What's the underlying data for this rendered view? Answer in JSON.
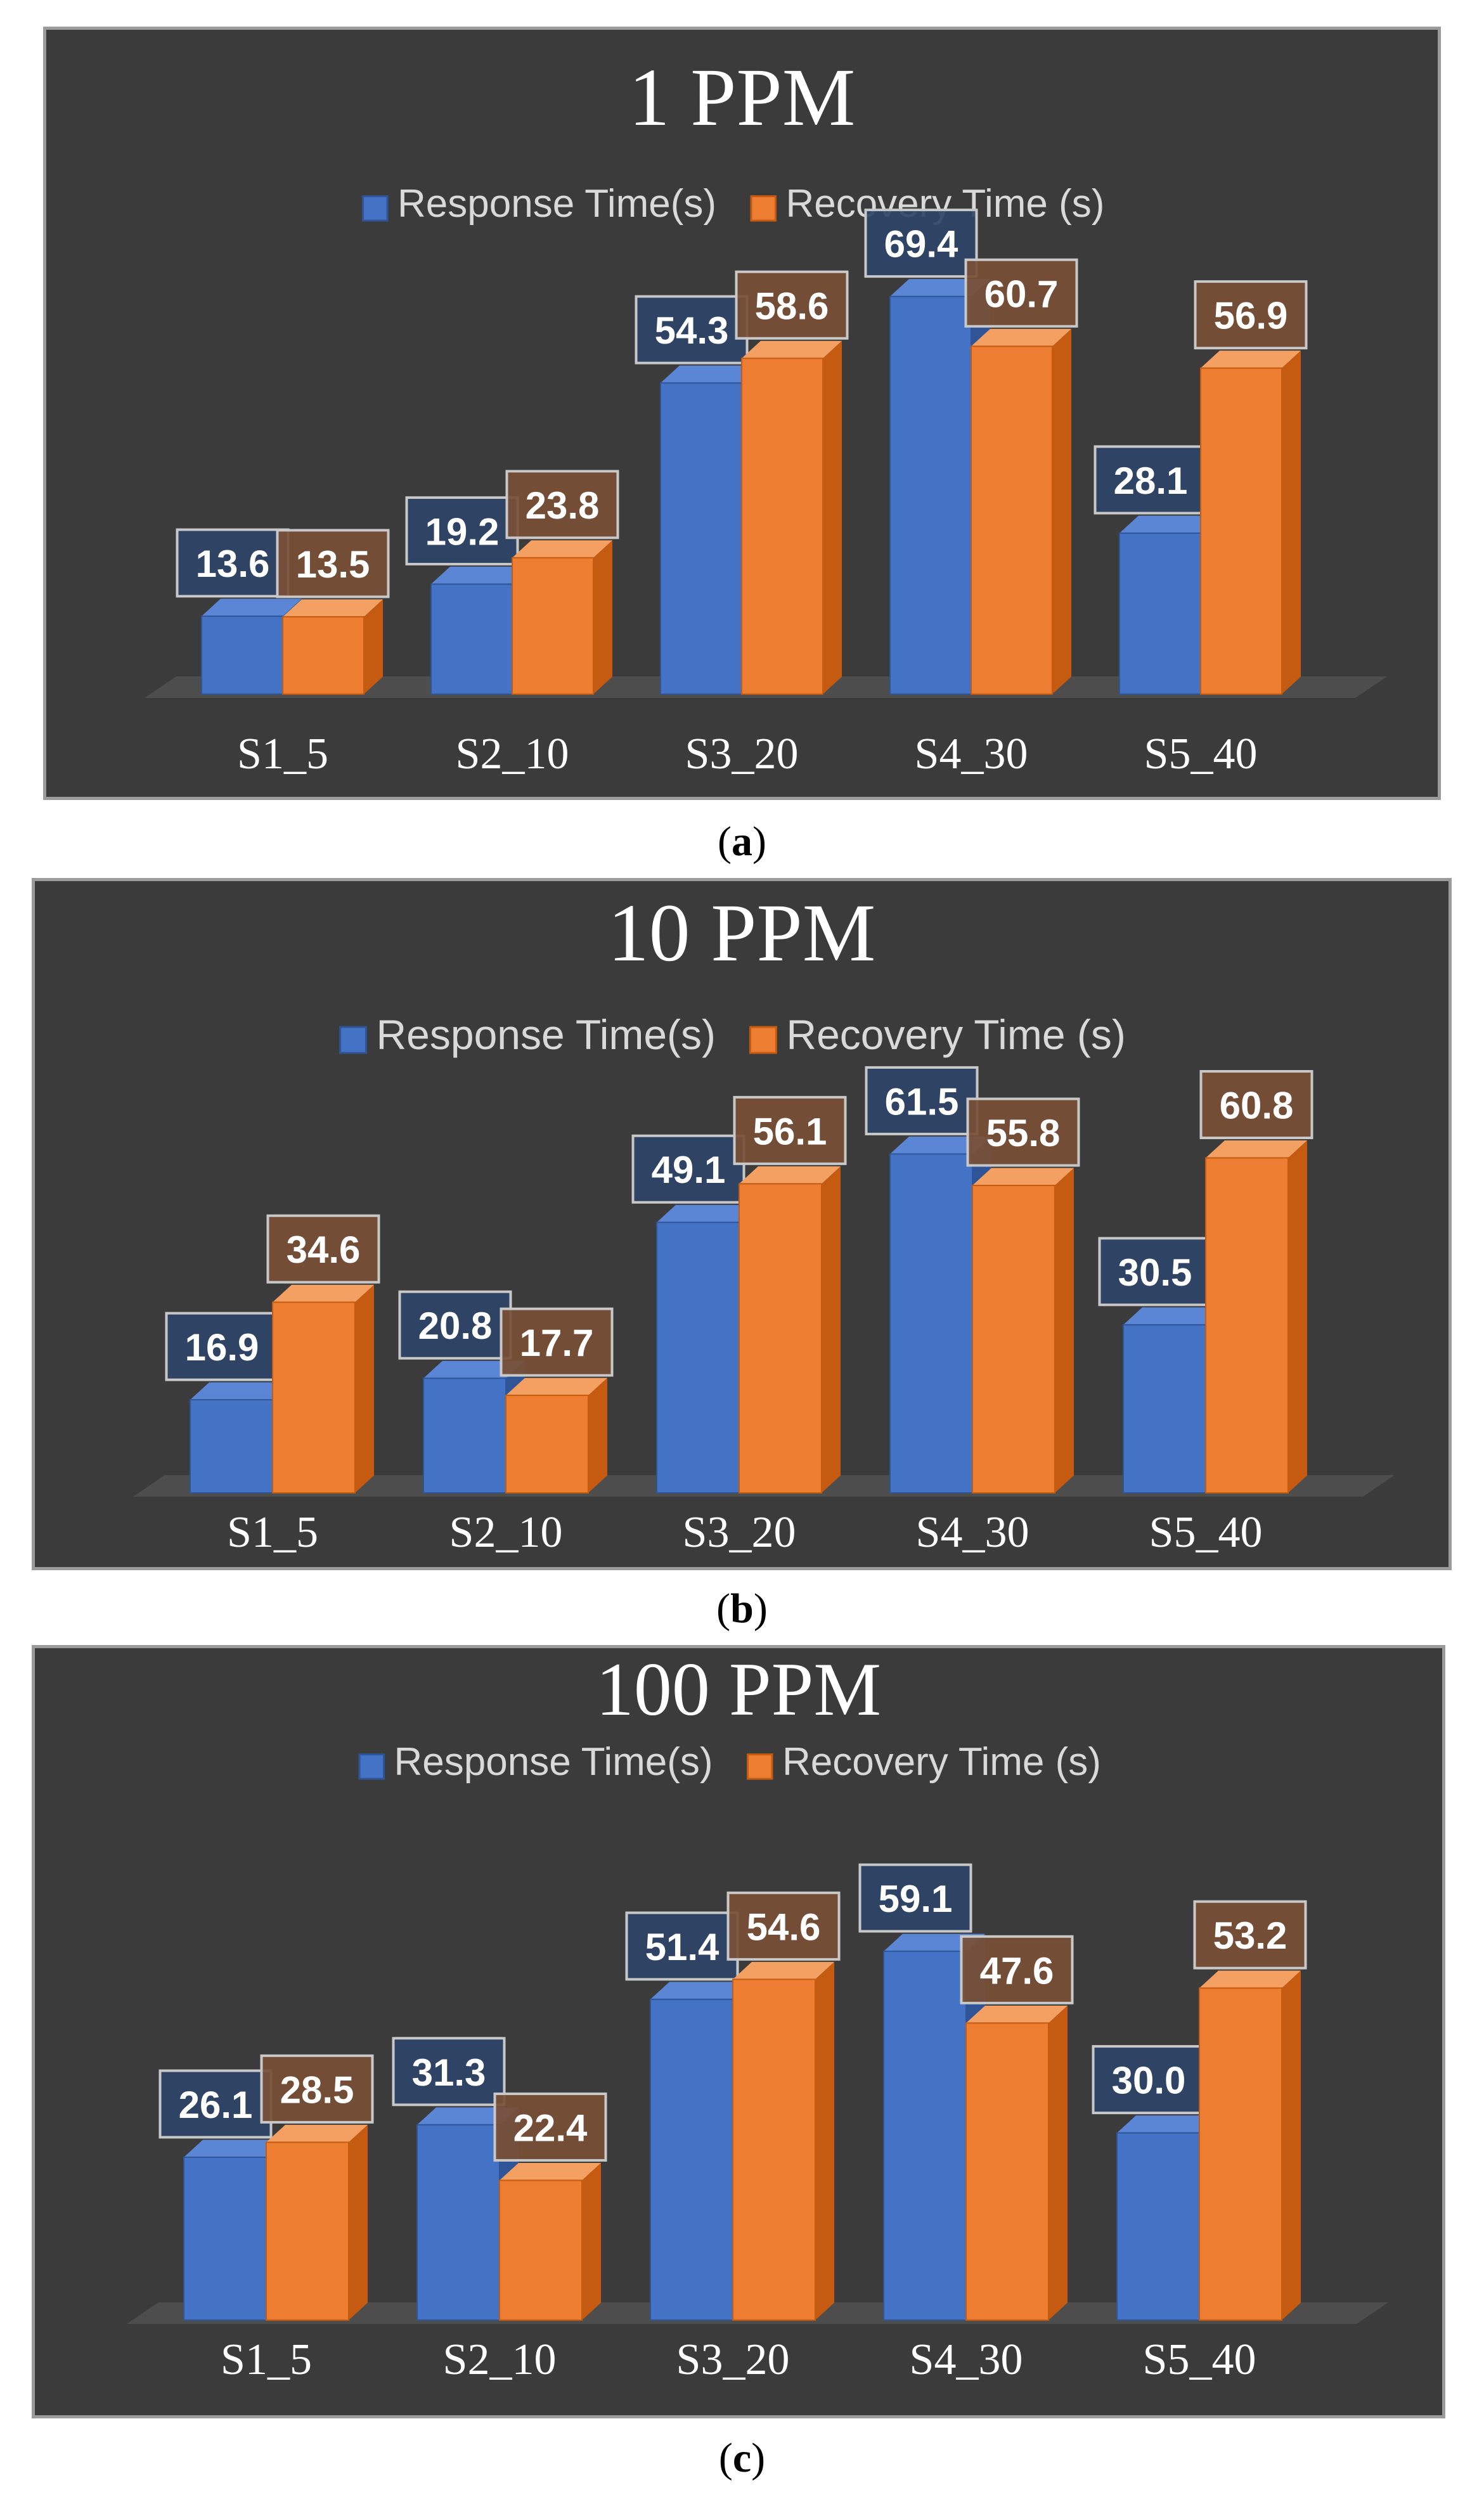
{
  "colors": {
    "response_front": "#4472c4",
    "response_side": "#2f5597",
    "response_top": "#5b86d6",
    "recovery_front": "#ed7d31",
    "recovery_side": "#c55a11",
    "recovery_top": "#f4a063",
    "panel_bg": "#3b3b3b",
    "floor": "#4d4d4d",
    "text": "#f2f2f2",
    "label_bg_response": "#2f4468",
    "label_bg_recovery": "#7a4f36",
    "label_border": "#c8c8c8"
  },
  "chart_data": [
    {
      "type": "bar",
      "title": "1 PPM",
      "categories": [
        "S1_5",
        "S2_10",
        "S3_20",
        "S4_30",
        "S5_40"
      ],
      "series": [
        {
          "name": "Response Time(s)",
          "values": [
            13.6,
            19.2,
            54.3,
            69.4,
            28.1
          ]
        },
        {
          "name": "Recovery Time (s)",
          "values": [
            13.5,
            23.8,
            58.6,
            60.7,
            56.9
          ]
        }
      ],
      "ylim": [
        0,
        75
      ],
      "legend": "top"
    },
    {
      "type": "bar",
      "title": "10 PPM",
      "categories": [
        "S1_5",
        "S2_10",
        "S3_20",
        "S4_30",
        "S5_40"
      ],
      "series": [
        {
          "name": "Response Time(s)",
          "values": [
            16.9,
            20.8,
            49.1,
            61.5,
            30.5
          ]
        },
        {
          "name": "Recovery Time (s)",
          "values": [
            34.6,
            17.7,
            56.1,
            55.8,
            60.8
          ]
        }
      ],
      "ylim": [
        0,
        65
      ],
      "legend": "top"
    },
    {
      "type": "bar",
      "title": "100 PPM",
      "categories": [
        "S1_5",
        "S2_10",
        "S3_20",
        "S4_30",
        "S5_40"
      ],
      "series": [
        {
          "name": "Response Time(s)",
          "values": [
            26.1,
            31.3,
            51.4,
            59.1,
            30.0
          ]
        },
        {
          "name": "Recovery Time (s)",
          "values": [
            28.5,
            22.4,
            54.6,
            47.6,
            53.2
          ]
        }
      ],
      "ylim": [
        0,
        65
      ],
      "legend": "top"
    }
  ],
  "captions": [
    "a",
    "b",
    "c"
  ]
}
